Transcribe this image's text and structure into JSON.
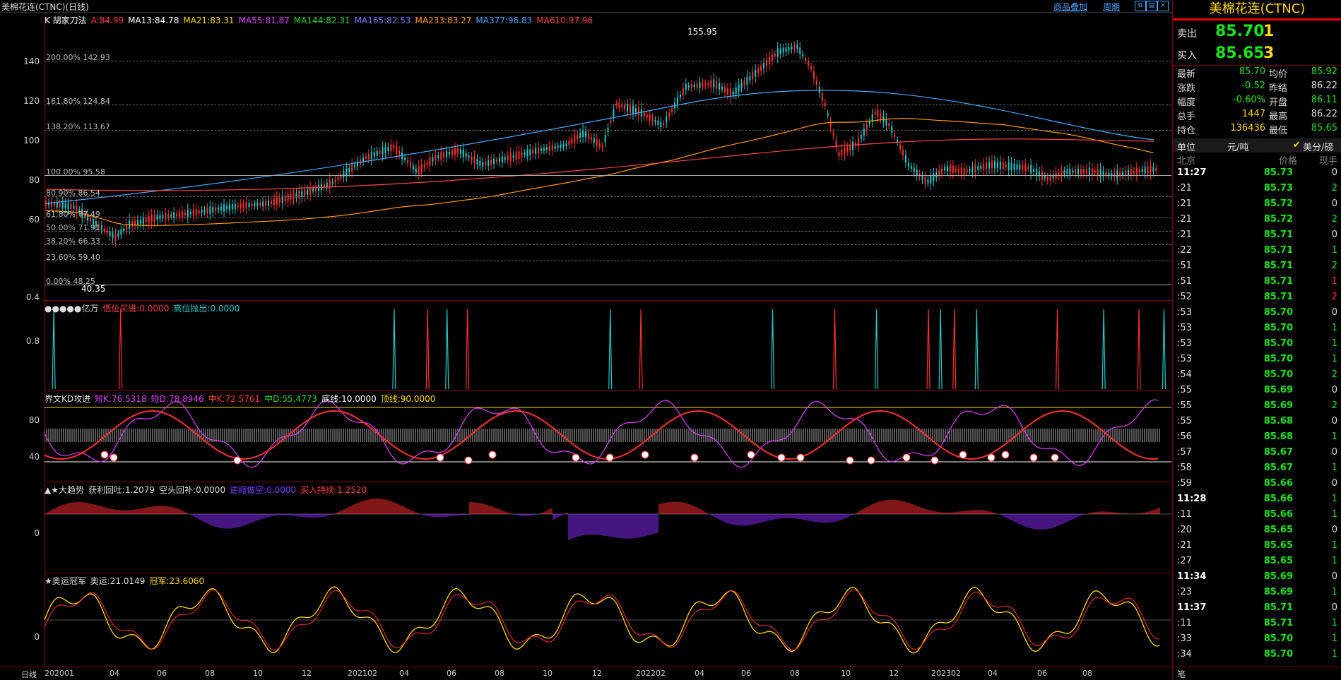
{
  "window": {
    "title": "美棉花连(CTNC)(日线)",
    "link_overlay": "商品叠加",
    "link_period": "周期"
  },
  "main_panel": {
    "legend": [
      {
        "text": "K 胡家刀法",
        "color": "#ffffff"
      },
      {
        "text": "A:84.99",
        "color": "#ff3b3b"
      },
      {
        "text": "MA13:84.78",
        "color": "#ffffff"
      },
      {
        "text": "MA21:83.31",
        "color": "#ffd700"
      },
      {
        "text": "MA55:81.87",
        "color": "#e040fb"
      },
      {
        "text": "MA144:82.31",
        "color": "#22dd22"
      },
      {
        "text": "MA165:82.53",
        "color": "#7b7bff"
      },
      {
        "text": "MA233:83.27",
        "color": "#ff9900"
      },
      {
        "text": "MA377:96.83",
        "color": "#44aaff"
      },
      {
        "text": "MA610:97.96",
        "color": "#ff4444"
      }
    ],
    "y_ticks": [
      "140",
      "120",
      "100",
      "80",
      "60"
    ],
    "fib_levels": [
      "200.00% 142.93",
      "161.80% 124.84",
      "138.20% 113.67",
      "100.00% 95.58",
      "80.90% 86.54",
      "61.80% 77.49",
      "50.00% 71.91",
      "38.20% 66.33",
      "23.60% 59.40",
      "0.00% 48.25"
    ],
    "high_label": "155.95",
    "low_label": "40.35"
  },
  "signal_panel": {
    "legend": [
      {
        "text": "●●●●●亿万",
        "color": "#dddddd"
      },
      {
        "text": "低位买进:0.0000",
        "color": "#ff3b3b"
      },
      {
        "text": "高位抛出:0.0000",
        "color": "#22cccc"
      }
    ],
    "y_ticks": [
      "0.8",
      "0.4"
    ]
  },
  "kd_panel": {
    "legend": [
      {
        "text": "界文KD攻进",
        "color": "#dddddd"
      },
      {
        "text": "短K:76.5318",
        "color": "#e040fb"
      },
      {
        "text": "短D:78.8946",
        "color": "#e040fb"
      },
      {
        "text": "中K:72.5761",
        "color": "#ff3b3b"
      },
      {
        "text": "中D:55.4773",
        "color": "#22dd22"
      },
      {
        "text": "底线:10.0000",
        "color": "#ffffff"
      },
      {
        "text": "顶线:90.0000",
        "color": "#ffd700"
      }
    ],
    "y_ticks": [
      "80",
      "40"
    ]
  },
  "trend_panel": {
    "legend": [
      {
        "text": "▲★大趋势",
        "color": "#dddddd"
      },
      {
        "text": "获利回吐:1.2079",
        "color": "#dddddd"
      },
      {
        "text": "空头回补:0.0000",
        "color": "#dddddd"
      },
      {
        "text": "逆缩做空:0.0000",
        "color": "#7b3bff"
      },
      {
        "text": "买入持续:1.2520",
        "color": "#ff3b3b"
      }
    ],
    "y_ticks": [
      "0"
    ]
  },
  "olympic_panel": {
    "legend": [
      {
        "text": "★奥运冠军",
        "color": "#dddddd"
      },
      {
        "text": "奥运:21.0149",
        "color": "#dddddd"
      },
      {
        "text": "冠军:23.6060",
        "color": "#ffd700"
      }
    ],
    "y_ticks": [
      "0"
    ]
  },
  "x_axis": {
    "label": "日线",
    "ticks": [
      "202001",
      "04",
      "06",
      "08",
      "10",
      "12",
      "202102",
      "04",
      "06",
      "08",
      "10",
      "12",
      "202202",
      "04",
      "06",
      "08",
      "10",
      "12",
      "202302",
      "04",
      "06",
      "08"
    ]
  },
  "quote": {
    "title": "美棉花连(CTNC)",
    "sell_label": "卖出",
    "sell_price": "85.70",
    "sell_vol": "1",
    "buy_label": "买入",
    "buy_price": "85.65",
    "buy_vol": "3",
    "stats": [
      {
        "l1": "最新",
        "v1": "85.70",
        "c1": "#19e619",
        "l2": "均价",
        "v2": "85.92",
        "c2": "#19e619"
      },
      {
        "l1": "涨跌",
        "v1": "-0.52",
        "c1": "#19e619",
        "l2": "昨结",
        "v2": "86.22",
        "c2": "#dddddd"
      },
      {
        "l1": "幅度",
        "v1": "-0.60%",
        "c1": "#19e619",
        "l2": "开盘",
        "v2": "86.11",
        "c2": "#19e619"
      },
      {
        "l1": "总手",
        "v1": "1447",
        "c1": "#ffd700",
        "l2": "最高",
        "v2": "86.22",
        "c2": "#dddddd"
      },
      {
        "l1": "持仓",
        "v1": "136436",
        "c1": "#ffd700",
        "l2": "最低",
        "v2": "85.65",
        "c2": "#19e619"
      }
    ],
    "unit_label": "单位",
    "unit_value": "元/吨",
    "unit_option": "美分/磅",
    "col_time": "北京",
    "col_price": "价格",
    "col_vol": "现手",
    "ticks": [
      {
        "t": "11:27",
        "p": "85.73",
        "v": "0",
        "vc": "#dddddd",
        "big": true
      },
      {
        "t": ":21",
        "p": "85.73",
        "v": "2",
        "vc": "#19e619"
      },
      {
        "t": ":21",
        "p": "85.72",
        "v": "0",
        "vc": "#dddddd"
      },
      {
        "t": ":21",
        "p": "85.72",
        "v": "2",
        "vc": "#19e619"
      },
      {
        "t": ":21",
        "p": "85.71",
        "v": "0",
        "vc": "#dddddd"
      },
      {
        "t": ":22",
        "p": "85.71",
        "v": "1",
        "vc": "#19e619"
      },
      {
        "t": ":51",
        "p": "85.71",
        "v": "2",
        "vc": "#19e619"
      },
      {
        "t": ":51",
        "p": "85.71",
        "v": "1",
        "vc": "#ff3030"
      },
      {
        "t": ":52",
        "p": "85.71",
        "v": "2",
        "vc": "#ff3030"
      },
      {
        "t": ":53",
        "p": "85.70",
        "v": "0",
        "vc": "#dddddd"
      },
      {
        "t": ":53",
        "p": "85.70",
        "v": "1",
        "vc": "#19e619"
      },
      {
        "t": ":53",
        "p": "85.70",
        "v": "1",
        "vc": "#19e619"
      },
      {
        "t": ":53",
        "p": "85.70",
        "v": "1",
        "vc": "#19e619"
      },
      {
        "t": ":54",
        "p": "85.70",
        "v": "2",
        "vc": "#19e619"
      },
      {
        "t": ":55",
        "p": "85.69",
        "v": "0",
        "vc": "#dddddd"
      },
      {
        "t": ":55",
        "p": "85.69",
        "v": "2",
        "vc": "#19e619"
      },
      {
        "t": ":55",
        "p": "85.68",
        "v": "0",
        "vc": "#dddddd"
      },
      {
        "t": ":56",
        "p": "85.68",
        "v": "1",
        "vc": "#19e619"
      },
      {
        "t": ":57",
        "p": "85.67",
        "v": "0",
        "vc": "#dddddd"
      },
      {
        "t": ":58",
        "p": "85.67",
        "v": "1",
        "vc": "#19e619"
      },
      {
        "t": ":59",
        "p": "85.66",
        "v": "0",
        "vc": "#dddddd"
      },
      {
        "t": "11:28",
        "p": "85.66",
        "v": "1",
        "vc": "#19e619",
        "big": true
      },
      {
        "t": ":11",
        "p": "85.66",
        "v": "1",
        "vc": "#19e619"
      },
      {
        "t": ":20",
        "p": "85.65",
        "v": "0",
        "vc": "#dddddd"
      },
      {
        "t": ":21",
        "p": "85.65",
        "v": "1",
        "vc": "#19e619"
      },
      {
        "t": ":27",
        "p": "85.65",
        "v": "1",
        "vc": "#19e619"
      },
      {
        "t": "11:34",
        "p": "85.69",
        "v": "0",
        "vc": "#dddddd",
        "big": true
      },
      {
        "t": ":23",
        "p": "85.69",
        "v": "1",
        "vc": "#19e619"
      },
      {
        "t": "11:37",
        "p": "85.71",
        "v": "0",
        "vc": "#dddddd",
        "big": true
      },
      {
        "t": ":11",
        "p": "85.71",
        "v": "1",
        "vc": "#19e619"
      },
      {
        "t": ":33",
        "p": "85.70",
        "v": "1",
        "vc": "#19e619"
      },
      {
        "t": ":34",
        "p": "85.70",
        "v": "1",
        "vc": "#19e619"
      }
    ],
    "footer": "笔"
  }
}
